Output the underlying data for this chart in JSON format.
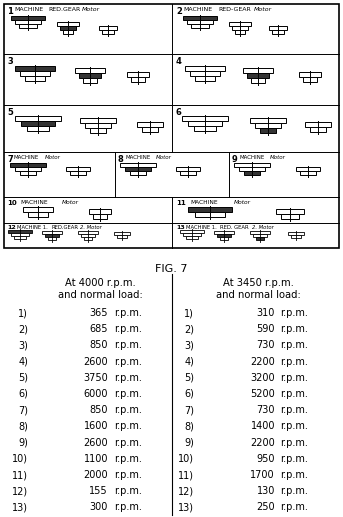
{
  "fig_label": "FIG. 7",
  "col1_header_line1": "At 4000 r.p.m.",
  "col1_header_line2": "and normal load:",
  "col2_header_line1": "At 3450 r.p.m.",
  "col2_header_line2": "and normal load:",
  "items": [
    1,
    2,
    3,
    4,
    5,
    6,
    7,
    8,
    9,
    10,
    11,
    12,
    13
  ],
  "values_4000": [
    365,
    685,
    850,
    2600,
    3750,
    6000,
    850,
    1600,
    2600,
    1100,
    2000,
    155,
    300
  ],
  "values_3450": [
    310,
    590,
    730,
    2200,
    3200,
    5200,
    730,
    1400,
    2200,
    950,
    1700,
    130,
    250
  ],
  "background": "#ffffff"
}
